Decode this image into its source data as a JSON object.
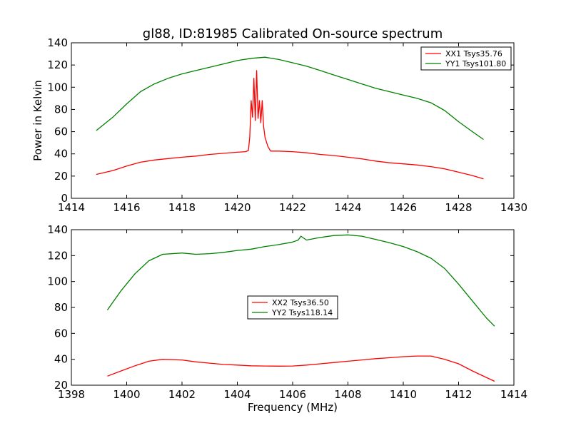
{
  "figure": {
    "title": "gl88, ID:81985 Calibrated On-source spectrum"
  },
  "chart_data": [
    {
      "type": "line",
      "title": "gl88, ID:81985 Calibrated On-source spectrum",
      "xlabel": "",
      "ylabel": "Power in Kelvin",
      "xlim": [
        1414,
        1430
      ],
      "ylim": [
        0,
        140
      ],
      "xticks": [
        1414,
        1416,
        1418,
        1420,
        1422,
        1424,
        1426,
        1428,
        1430
      ],
      "yticks": [
        0,
        20,
        40,
        60,
        80,
        100,
        120,
        140
      ],
      "grid": false,
      "legend_position": "top-right",
      "series": [
        {
          "name": "XX1 Tsys35.76",
          "color": "#ff0000",
          "x": [
            1414.9,
            1415.5,
            1416.0,
            1416.5,
            1417.0,
            1417.5,
            1418.0,
            1418.5,
            1419.0,
            1419.5,
            1420.0,
            1420.3,
            1420.4,
            1420.45,
            1420.5,
            1420.55,
            1420.6,
            1420.65,
            1420.7,
            1420.75,
            1420.8,
            1420.85,
            1420.9,
            1420.95,
            1421.0,
            1421.1,
            1421.2,
            1421.5,
            1422.0,
            1422.5,
            1423.0,
            1423.5,
            1424.0,
            1424.5,
            1425.0,
            1425.5,
            1426.0,
            1426.5,
            1427.0,
            1427.5,
            1428.0,
            1428.5,
            1428.9
          ],
          "y": [
            21.5,
            25,
            29,
            32.5,
            34.5,
            35.8,
            37,
            38,
            39.5,
            40.5,
            41.5,
            42,
            43,
            55,
            88,
            73,
            108,
            70,
            115,
            72,
            88,
            68,
            88,
            65,
            55,
            47,
            42.5,
            42.5,
            42,
            41,
            39.5,
            38.5,
            37,
            35.5,
            33.5,
            32,
            31,
            30,
            28.5,
            26.5,
            23.5,
            20.5,
            17.5
          ]
        },
        {
          "name": "YY1 Tsys101.80",
          "color": "#008000",
          "x": [
            1414.9,
            1415.5,
            1416.0,
            1416.5,
            1417.0,
            1417.5,
            1418.0,
            1418.5,
            1419.0,
            1419.5,
            1420.0,
            1420.5,
            1421.0,
            1421.5,
            1422.0,
            1422.5,
            1423.0,
            1423.5,
            1424.0,
            1424.5,
            1425.0,
            1425.5,
            1426.0,
            1426.5,
            1427.0,
            1427.5,
            1428.0,
            1428.5,
            1428.9
          ],
          "y": [
            61,
            73,
            85,
            96,
            103,
            108,
            112,
            115,
            118,
            121,
            124,
            126,
            127,
            125,
            122,
            119,
            115,
            111,
            107,
            103,
            99,
            96,
            93,
            90,
            86,
            79,
            69,
            60,
            53
          ]
        }
      ]
    },
    {
      "type": "line",
      "title": "",
      "xlabel": "Frequency (MHz)",
      "ylabel": "",
      "xlim": [
        1398,
        1414
      ],
      "ylim": [
        20,
        140
      ],
      "xticks": [
        1398,
        1400,
        1402,
        1404,
        1406,
        1408,
        1410,
        1412,
        1414
      ],
      "yticks": [
        20,
        40,
        60,
        80,
        100,
        120,
        140
      ],
      "grid": false,
      "legend_position": "center",
      "series": [
        {
          "name": "XX2 Tsys36.50",
          "color": "#ff0000",
          "x": [
            1399.3,
            1399.8,
            1400.3,
            1400.8,
            1401.3,
            1402.0,
            1402.5,
            1403.0,
            1403.5,
            1404.0,
            1404.5,
            1405.0,
            1405.5,
            1406.0,
            1406.5,
            1407.0,
            1407.5,
            1408.0,
            1408.5,
            1409.0,
            1409.5,
            1410.0,
            1410.5,
            1411.0,
            1411.5,
            1412.0,
            1412.5,
            1413.0,
            1413.3
          ],
          "y": [
            27,
            31,
            35,
            38.5,
            40,
            39.5,
            38,
            37,
            36,
            35.5,
            35,
            34.8,
            34.7,
            34.8,
            35.5,
            36.5,
            37.5,
            38.5,
            39.5,
            40.5,
            41.2,
            42,
            42.5,
            42.5,
            40,
            36.5,
            31,
            26,
            23
          ]
        },
        {
          "name": "YY2 Tsys118.14",
          "color": "#008000",
          "x": [
            1399.3,
            1399.8,
            1400.3,
            1400.8,
            1401.3,
            1402.0,
            1402.5,
            1403.0,
            1403.5,
            1404.0,
            1404.5,
            1405.0,
            1405.5,
            1406.0,
            1406.2,
            1406.3,
            1406.5,
            1407.0,
            1407.5,
            1408.0,
            1408.5,
            1409.0,
            1409.5,
            1410.0,
            1410.5,
            1411.0,
            1411.5,
            1412.0,
            1412.5,
            1413.0,
            1413.3
          ],
          "y": [
            78,
            93,
            106,
            116,
            121,
            122,
            121,
            121.5,
            122.5,
            124,
            125,
            127,
            128.5,
            130.5,
            132,
            135,
            132,
            134,
            135.5,
            136,
            135,
            132.5,
            130,
            127,
            123,
            118,
            110,
            98,
            85,
            72,
            65.5
          ]
        }
      ]
    }
  ]
}
